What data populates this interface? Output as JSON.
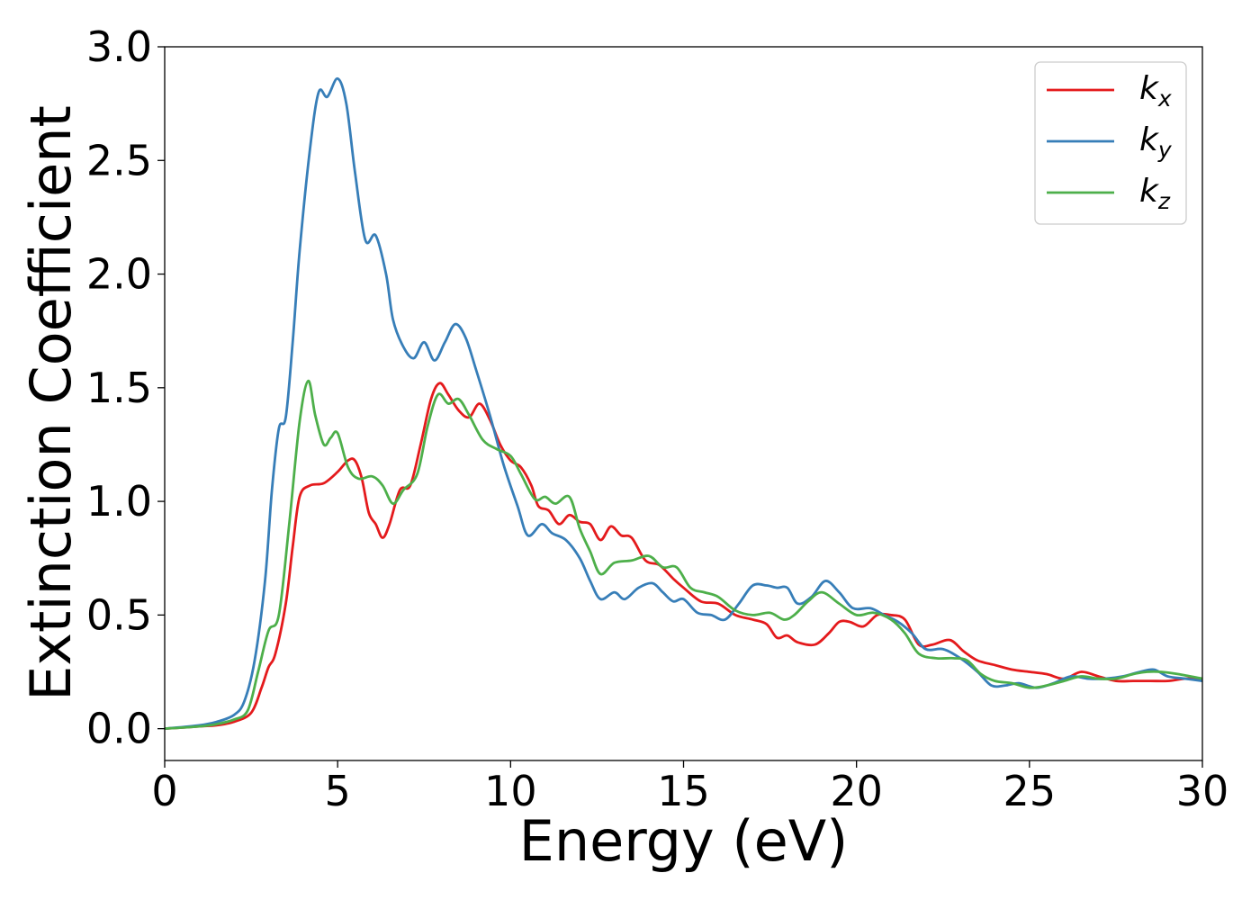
{
  "chart_data": {
    "type": "line",
    "xlabel": "Energy (eV)",
    "ylabel": "Extinction Coefficient",
    "xlim": [
      0,
      30
    ],
    "ylim": [
      -0.14,
      3.0
    ],
    "xticks": [
      "0",
      "5",
      "10",
      "15",
      "20",
      "25",
      "30"
    ],
    "yticks": [
      "0.0",
      "0.5",
      "1.0",
      "1.5",
      "2.0",
      "2.5",
      "3.0"
    ],
    "legend_position": "top-right",
    "grid": false,
    "series": [
      {
        "name": "k",
        "subscript": "x",
        "color": "#e41a1c",
        "points": [
          [
            0,
            0
          ],
          [
            1,
            0.01
          ],
          [
            1.5,
            0.015
          ],
          [
            2,
            0.03
          ],
          [
            2.5,
            0.07
          ],
          [
            2.8,
            0.18
          ],
          [
            3,
            0.27
          ],
          [
            3.2,
            0.33
          ],
          [
            3.5,
            0.55
          ],
          [
            3.7,
            0.8
          ],
          [
            3.9,
            1.02
          ],
          [
            4.2,
            1.07
          ],
          [
            4.6,
            1.08
          ],
          [
            5,
            1.13
          ],
          [
            5.3,
            1.18
          ],
          [
            5.5,
            1.18
          ],
          [
            5.7,
            1.1
          ],
          [
            5.9,
            0.95
          ],
          [
            6.1,
            0.9
          ],
          [
            6.3,
            0.84
          ],
          [
            6.5,
            0.9
          ],
          [
            6.8,
            1.05
          ],
          [
            7.1,
            1.07
          ],
          [
            7.4,
            1.25
          ],
          [
            7.7,
            1.45
          ],
          [
            7.95,
            1.52
          ],
          [
            8.2,
            1.47
          ],
          [
            8.5,
            1.4
          ],
          [
            8.8,
            1.37
          ],
          [
            9.1,
            1.43
          ],
          [
            9.4,
            1.36
          ],
          [
            9.7,
            1.25
          ],
          [
            10,
            1.18
          ],
          [
            10.3,
            1.15
          ],
          [
            10.6,
            1.07
          ],
          [
            10.8,
            0.98
          ],
          [
            11.1,
            0.96
          ],
          [
            11.4,
            0.9
          ],
          [
            11.7,
            0.94
          ],
          [
            12,
            0.91
          ],
          [
            12.3,
            0.9
          ],
          [
            12.6,
            0.83
          ],
          [
            12.9,
            0.89
          ],
          [
            13.2,
            0.85
          ],
          [
            13.5,
            0.84
          ],
          [
            13.9,
            0.74
          ],
          [
            14.3,
            0.72
          ],
          [
            14.7,
            0.66
          ],
          [
            15,
            0.62
          ],
          [
            15.5,
            0.56
          ],
          [
            16,
            0.55
          ],
          [
            16.5,
            0.5
          ],
          [
            17,
            0.48
          ],
          [
            17.4,
            0.46
          ],
          [
            17.7,
            0.4
          ],
          [
            18,
            0.41
          ],
          [
            18.3,
            0.38
          ],
          [
            18.8,
            0.37
          ],
          [
            19.2,
            0.42
          ],
          [
            19.5,
            0.47
          ],
          [
            19.8,
            0.47
          ],
          [
            20.2,
            0.45
          ],
          [
            20.6,
            0.5
          ],
          [
            21,
            0.5
          ],
          [
            21.4,
            0.48
          ],
          [
            21.8,
            0.37
          ],
          [
            22.2,
            0.37
          ],
          [
            22.7,
            0.39
          ],
          [
            23.1,
            0.34
          ],
          [
            23.5,
            0.3
          ],
          [
            24,
            0.28
          ],
          [
            24.5,
            0.26
          ],
          [
            25,
            0.25
          ],
          [
            25.5,
            0.24
          ],
          [
            26,
            0.22
          ],
          [
            26.5,
            0.25
          ],
          [
            27,
            0.23
          ],
          [
            27.5,
            0.21
          ],
          [
            28,
            0.21
          ],
          [
            28.5,
            0.21
          ],
          [
            29,
            0.21
          ],
          [
            29.5,
            0.22
          ],
          [
            30,
            0.22
          ]
        ]
      },
      {
        "name": "k",
        "subscript": "y",
        "color": "#377eb8",
        "points": [
          [
            0,
            0
          ],
          [
            1,
            0.015
          ],
          [
            1.5,
            0.03
          ],
          [
            2,
            0.06
          ],
          [
            2.3,
            0.12
          ],
          [
            2.6,
            0.3
          ],
          [
            2.9,
            0.65
          ],
          [
            3.1,
            1.05
          ],
          [
            3.3,
            1.32
          ],
          [
            3.5,
            1.37
          ],
          [
            3.7,
            1.7
          ],
          [
            3.9,
            2.1
          ],
          [
            4.2,
            2.55
          ],
          [
            4.45,
            2.8
          ],
          [
            4.7,
            2.78
          ],
          [
            5,
            2.86
          ],
          [
            5.25,
            2.75
          ],
          [
            5.5,
            2.45
          ],
          [
            5.8,
            2.15
          ],
          [
            6.1,
            2.17
          ],
          [
            6.4,
            2.0
          ],
          [
            6.6,
            1.8
          ],
          [
            6.9,
            1.68
          ],
          [
            7.2,
            1.63
          ],
          [
            7.5,
            1.7
          ],
          [
            7.8,
            1.62
          ],
          [
            8.1,
            1.7
          ],
          [
            8.4,
            1.78
          ],
          [
            8.7,
            1.72
          ],
          [
            9,
            1.58
          ],
          [
            9.4,
            1.38
          ],
          [
            9.8,
            1.16
          ],
          [
            10.2,
            0.98
          ],
          [
            10.5,
            0.85
          ],
          [
            10.9,
            0.9
          ],
          [
            11.2,
            0.86
          ],
          [
            11.6,
            0.83
          ],
          [
            12,
            0.75
          ],
          [
            12.3,
            0.65
          ],
          [
            12.6,
            0.57
          ],
          [
            13,
            0.6
          ],
          [
            13.3,
            0.57
          ],
          [
            13.7,
            0.62
          ],
          [
            14.1,
            0.64
          ],
          [
            14.4,
            0.6
          ],
          [
            14.7,
            0.56
          ],
          [
            15,
            0.57
          ],
          [
            15.4,
            0.51
          ],
          [
            15.8,
            0.5
          ],
          [
            16.2,
            0.48
          ],
          [
            16.6,
            0.55
          ],
          [
            17,
            0.63
          ],
          [
            17.4,
            0.63
          ],
          [
            17.7,
            0.62
          ],
          [
            18,
            0.62
          ],
          [
            18.3,
            0.55
          ],
          [
            18.7,
            0.58
          ],
          [
            19.1,
            0.65
          ],
          [
            19.5,
            0.6
          ],
          [
            19.9,
            0.53
          ],
          [
            20.4,
            0.53
          ],
          [
            20.8,
            0.5
          ],
          [
            21.2,
            0.47
          ],
          [
            21.6,
            0.42
          ],
          [
            22,
            0.35
          ],
          [
            22.5,
            0.35
          ],
          [
            23,
            0.31
          ],
          [
            23.5,
            0.25
          ],
          [
            23.9,
            0.19
          ],
          [
            24.3,
            0.19
          ],
          [
            24.7,
            0.2
          ],
          [
            25.2,
            0.18
          ],
          [
            25.7,
            0.2
          ],
          [
            26.2,
            0.23
          ],
          [
            26.7,
            0.22
          ],
          [
            27.2,
            0.22
          ],
          [
            27.7,
            0.23
          ],
          [
            28.2,
            0.25
          ],
          [
            28.6,
            0.26
          ],
          [
            29,
            0.23
          ],
          [
            29.5,
            0.22
          ],
          [
            30,
            0.21
          ]
        ]
      },
      {
        "name": "k",
        "subscript": "z",
        "color": "#4daf4a",
        "points": [
          [
            0,
            0
          ],
          [
            1,
            0.01
          ],
          [
            1.5,
            0.02
          ],
          [
            2,
            0.04
          ],
          [
            2.4,
            0.08
          ],
          [
            2.7,
            0.25
          ],
          [
            3,
            0.43
          ],
          [
            3.3,
            0.5
          ],
          [
            3.6,
            0.9
          ],
          [
            3.9,
            1.35
          ],
          [
            4.15,
            1.53
          ],
          [
            4.35,
            1.38
          ],
          [
            4.6,
            1.25
          ],
          [
            4.8,
            1.28
          ],
          [
            5,
            1.3
          ],
          [
            5.3,
            1.15
          ],
          [
            5.6,
            1.1
          ],
          [
            6,
            1.11
          ],
          [
            6.3,
            1.07
          ],
          [
            6.6,
            0.99
          ],
          [
            6.9,
            1.05
          ],
          [
            7.3,
            1.12
          ],
          [
            7.6,
            1.33
          ],
          [
            7.9,
            1.47
          ],
          [
            8.2,
            1.43
          ],
          [
            8.5,
            1.45
          ],
          [
            8.8,
            1.38
          ],
          [
            9.2,
            1.27
          ],
          [
            9.6,
            1.23
          ],
          [
            10,
            1.2
          ],
          [
            10.3,
            1.12
          ],
          [
            10.7,
            1.01
          ],
          [
            11,
            1.02
          ],
          [
            11.3,
            0.99
          ],
          [
            11.7,
            1.02
          ],
          [
            12,
            0.88
          ],
          [
            12.3,
            0.78
          ],
          [
            12.6,
            0.68
          ],
          [
            13,
            0.73
          ],
          [
            13.5,
            0.74
          ],
          [
            14,
            0.76
          ],
          [
            14.4,
            0.71
          ],
          [
            14.8,
            0.71
          ],
          [
            15.2,
            0.62
          ],
          [
            15.6,
            0.6
          ],
          [
            16,
            0.58
          ],
          [
            16.5,
            0.52
          ],
          [
            17,
            0.5
          ],
          [
            17.5,
            0.51
          ],
          [
            17.9,
            0.48
          ],
          [
            18.2,
            0.5
          ],
          [
            18.6,
            0.56
          ],
          [
            19,
            0.6
          ],
          [
            19.5,
            0.55
          ],
          [
            20,
            0.5
          ],
          [
            20.5,
            0.51
          ],
          [
            21,
            0.48
          ],
          [
            21.4,
            0.42
          ],
          [
            21.8,
            0.33
          ],
          [
            22.3,
            0.31
          ],
          [
            22.8,
            0.31
          ],
          [
            23.2,
            0.3
          ],
          [
            23.6,
            0.24
          ],
          [
            24,
            0.21
          ],
          [
            24.5,
            0.2
          ],
          [
            25,
            0.18
          ],
          [
            25.5,
            0.19
          ],
          [
            26,
            0.21
          ],
          [
            26.5,
            0.23
          ],
          [
            27,
            0.22
          ],
          [
            27.5,
            0.22
          ],
          [
            28,
            0.24
          ],
          [
            28.4,
            0.25
          ],
          [
            28.8,
            0.25
          ],
          [
            29.3,
            0.24
          ],
          [
            30,
            0.22
          ]
        ]
      }
    ]
  }
}
